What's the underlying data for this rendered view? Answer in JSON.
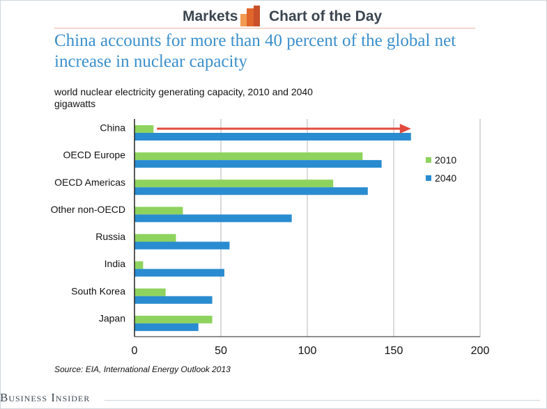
{
  "header": {
    "brand_left": "Markets",
    "brand_right": "Chart of the Day",
    "logo_icon": "bar-chart-logo-icon",
    "accent": "#e0662c"
  },
  "chart_data": {
    "type": "bar",
    "orientation": "horizontal",
    "title": "China accounts for more than 40 percent of the global net increase in nuclear capacity",
    "subtitle_lines": [
      "world nuclear electricity generating capacity, 2010 and 2040",
      "gigawatts"
    ],
    "categories": [
      "China",
      "OECD Europe",
      "OECD Americas",
      "Other non-OECD",
      "Russia",
      "India",
      "South Korea",
      "Japan"
    ],
    "series": [
      {
        "name": "2010",
        "color": "#8ed35e",
        "values": [
          11,
          132,
          115,
          28,
          24,
          5,
          18,
          45
        ]
      },
      {
        "name": "2040",
        "color": "#2a8cd0",
        "values": [
          160,
          143,
          135,
          91,
          55,
          52,
          45,
          37
        ]
      }
    ],
    "xlim": [
      0,
      200
    ],
    "xticks": [
      "0",
      "50",
      "100",
      "150",
      "200"
    ],
    "xtick_values": [
      0,
      50,
      100,
      150,
      200
    ],
    "grid": true,
    "legend_position": "right",
    "annotation": {
      "type": "arrow",
      "color": "#e34a3e",
      "from_value": 13,
      "to_value": 160,
      "category": "China"
    },
    "source": "Source:  EIA, International Energy Outlook 2013"
  },
  "footer": {
    "brand": "Business Insider"
  }
}
